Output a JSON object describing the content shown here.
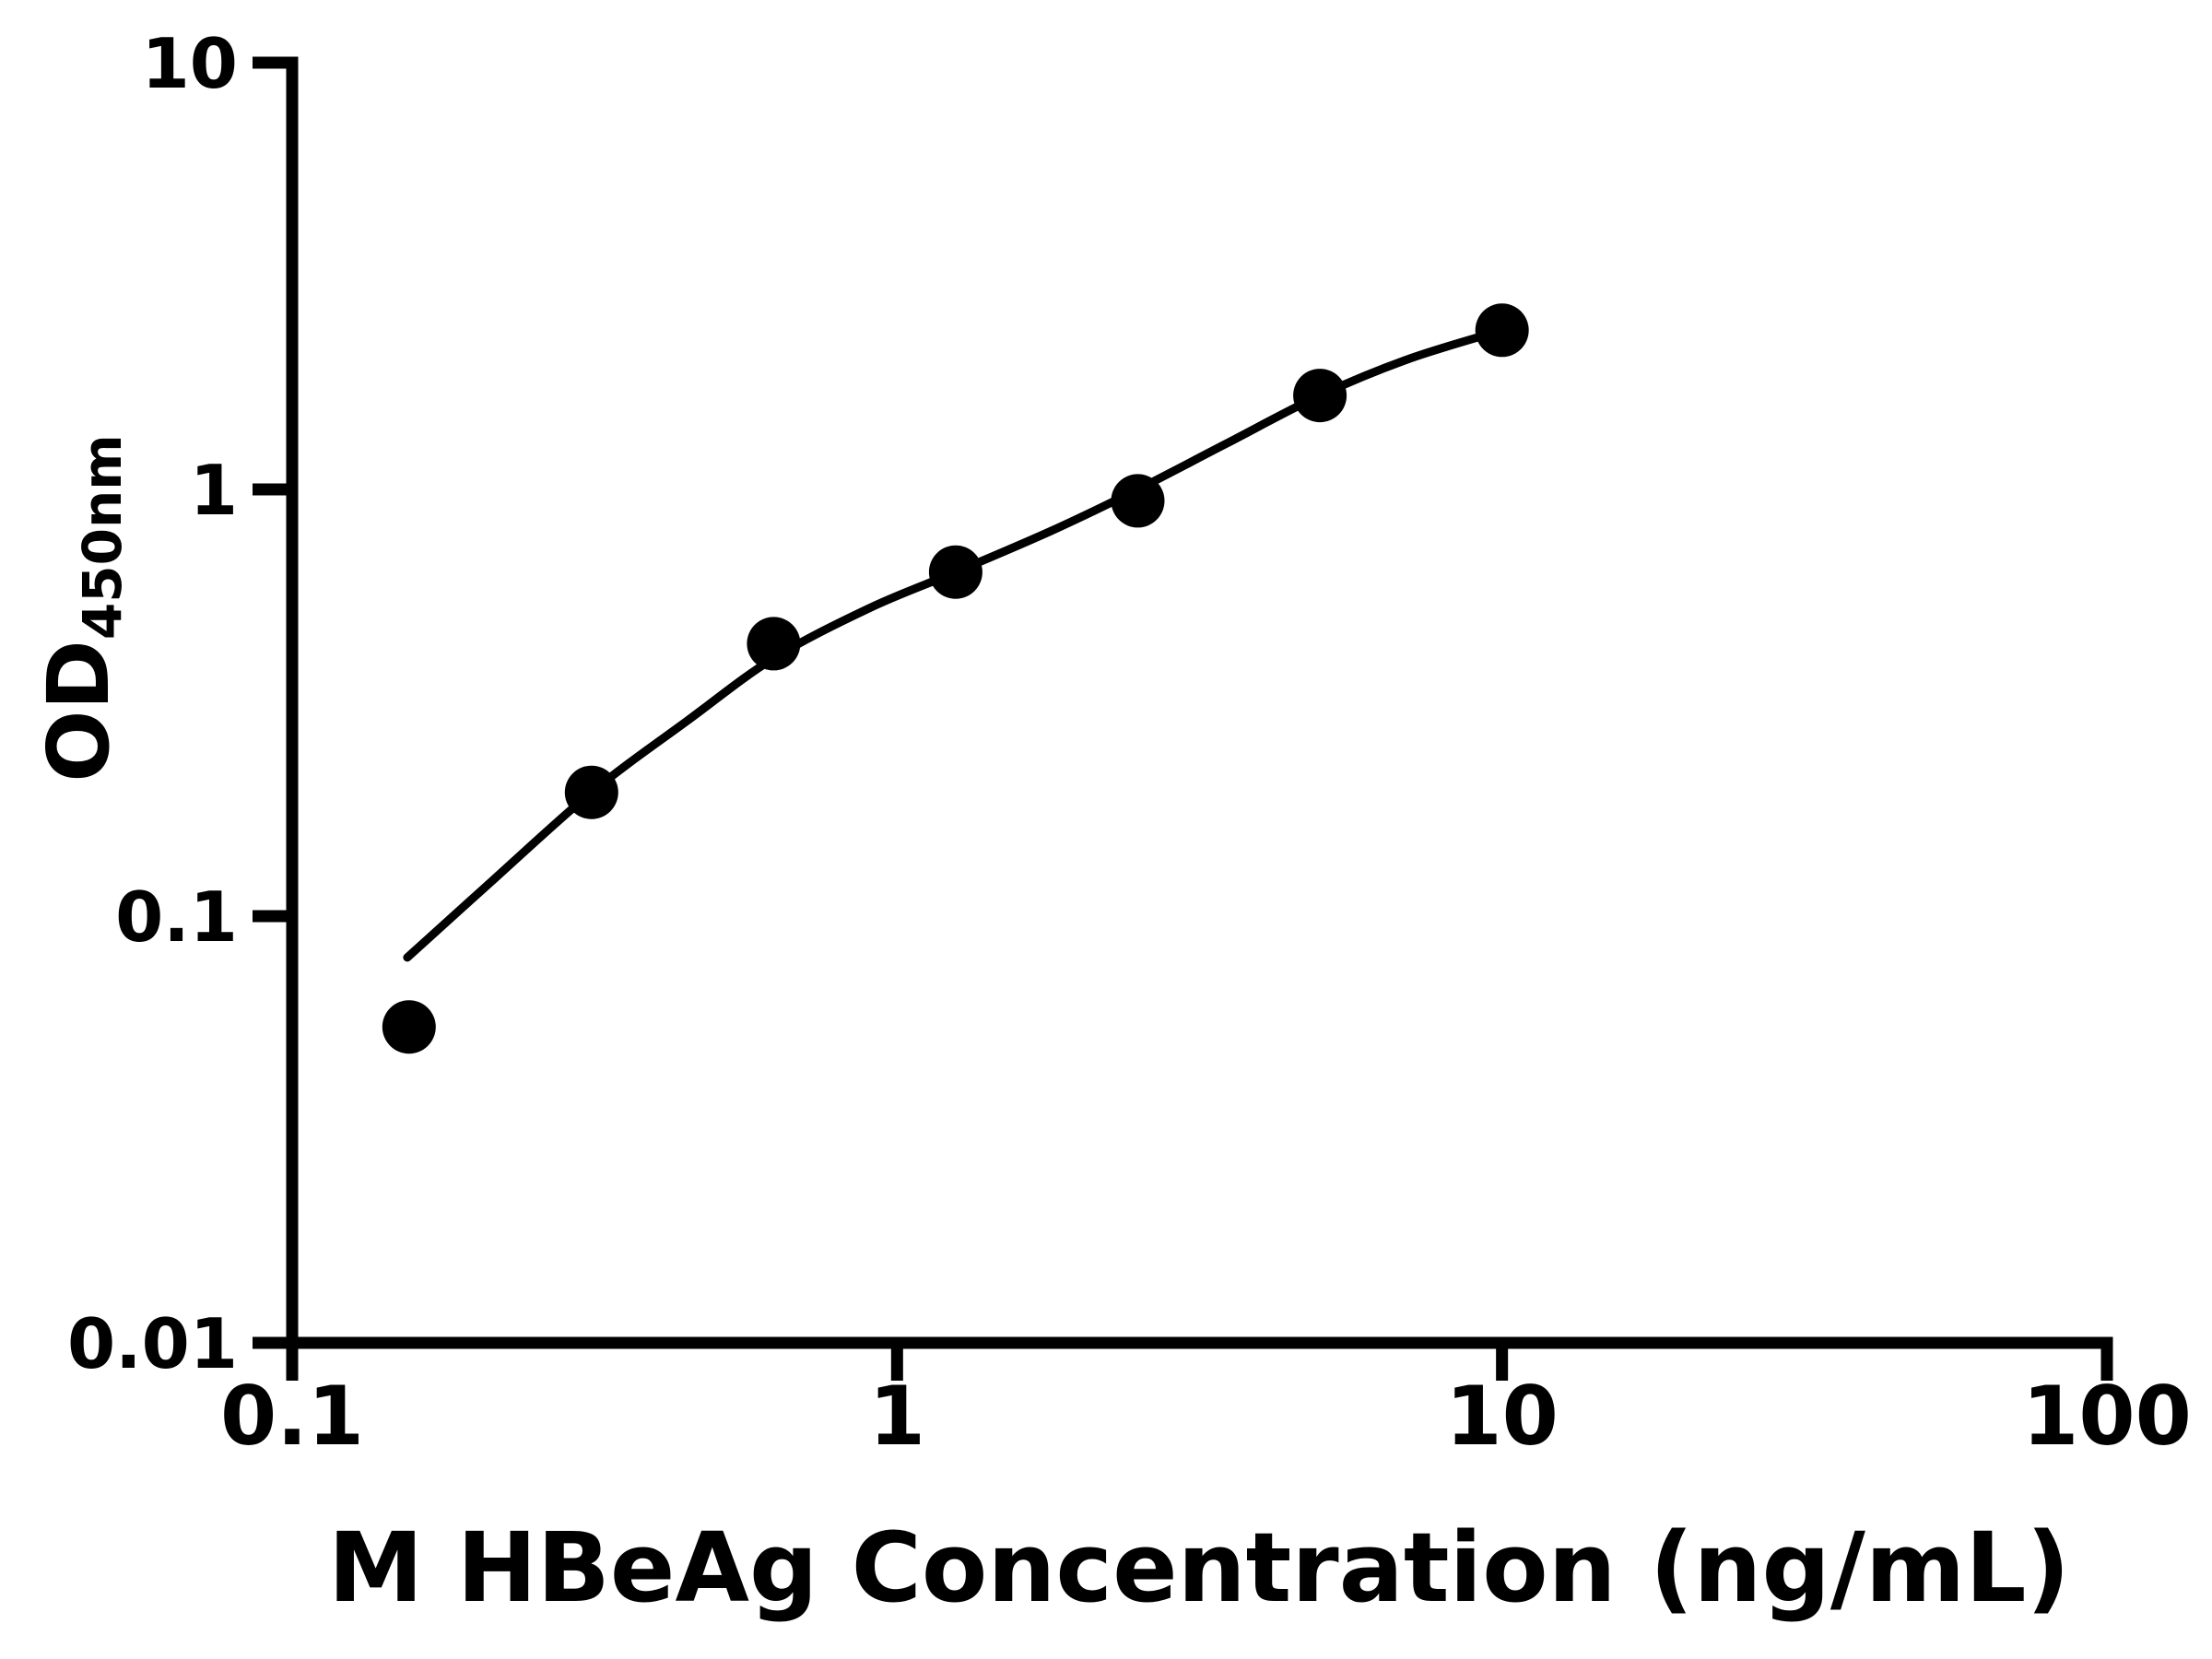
{
  "figure": {
    "background": "#ffffff",
    "ink": "#000000"
  },
  "chart_data": {
    "type": "scatter",
    "title": "",
    "xlabel": "M HBeAg Concentration (ng/mL)",
    "ylabel": "OD",
    "ylabel_subscript": "450nm",
    "x_scale": "log",
    "y_scale": "log",
    "xlim": [
      0.1,
      100
    ],
    "ylim": [
      0.01,
      10
    ],
    "grid": "off",
    "legend": "none",
    "x_ticks": [
      {
        "value": 0.1,
        "label": "0.1"
      },
      {
        "value": 1,
        "label": "1"
      },
      {
        "value": 10,
        "label": "10"
      },
      {
        "value": 100,
        "label": "100"
      }
    ],
    "y_ticks": [
      {
        "value": 10,
        "label": "10"
      },
      {
        "value": 1,
        "label": "1"
      },
      {
        "value": 0.1,
        "label": "0.1"
      },
      {
        "value": 0.01,
        "label": "0.01"
      }
    ],
    "series": [
      {
        "name": "standard-points",
        "type": "scatter",
        "marker": "filled-circle",
        "color": "#000000",
        "points": [
          {
            "x": 0.156,
            "y": 0.055
          },
          {
            "x": 0.3125,
            "y": 0.195
          },
          {
            "x": 0.625,
            "y": 0.435
          },
          {
            "x": 1.25,
            "y": 0.64
          },
          {
            "x": 2.5,
            "y": 0.94
          },
          {
            "x": 5,
            "y": 1.66
          },
          {
            "x": 10,
            "y": 2.36
          }
        ]
      },
      {
        "name": "fit-curve",
        "type": "line",
        "color": "#000000",
        "points": [
          {
            "x": 0.155,
            "y": 0.08
          },
          {
            "x": 0.21,
            "y": 0.118
          },
          {
            "x": 0.3125,
            "y": 0.195
          },
          {
            "x": 0.45,
            "y": 0.287
          },
          {
            "x": 0.625,
            "y": 0.402
          },
          {
            "x": 0.9,
            "y": 0.527
          },
          {
            "x": 1.25,
            "y": 0.64
          },
          {
            "x": 1.8,
            "y": 0.8
          },
          {
            "x": 2.5,
            "y": 1.0
          },
          {
            "x": 3.5,
            "y": 1.28
          },
          {
            "x": 5,
            "y": 1.66
          },
          {
            "x": 7,
            "y": 2.02
          },
          {
            "x": 10,
            "y": 2.36
          }
        ]
      }
    ]
  }
}
